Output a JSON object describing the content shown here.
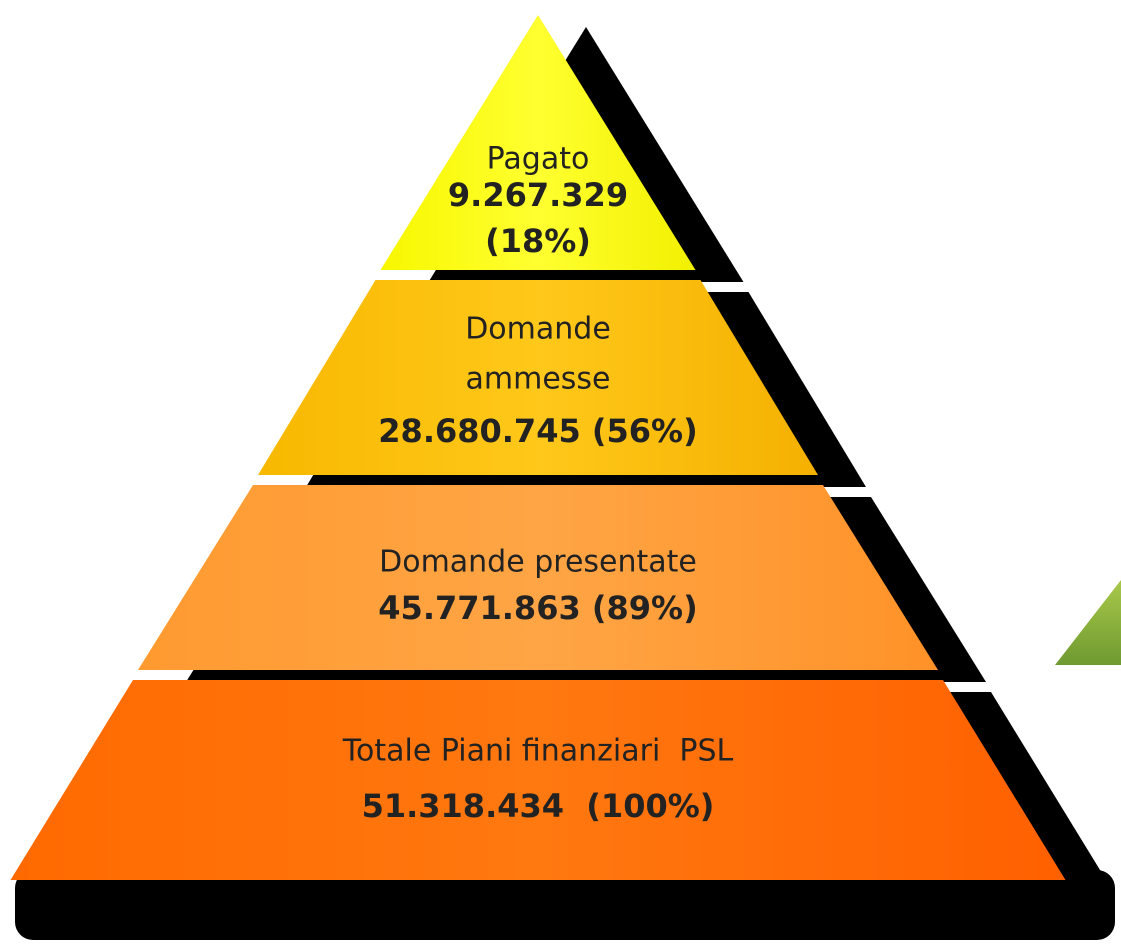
{
  "levels": [
    {
      "label_lines": [
        "Pagato"
      ],
      "value_lines": [
        "9.267.329",
        "(18%)"
      ]
    },
    {
      "label_lines": [
        "Domande",
        "ammesse"
      ],
      "value_lines": [
        "28.680.745 (56%)"
      ]
    },
    {
      "label_lines": [
        "Domande presentate"
      ],
      "value_lines": [
        "45.771.863 (89%)"
      ]
    },
    {
      "label_lines": [
        "Totale Piani finanziari  PSL"
      ],
      "value_lines": [
        "51.318.434  (100%)"
      ]
    }
  ]
}
